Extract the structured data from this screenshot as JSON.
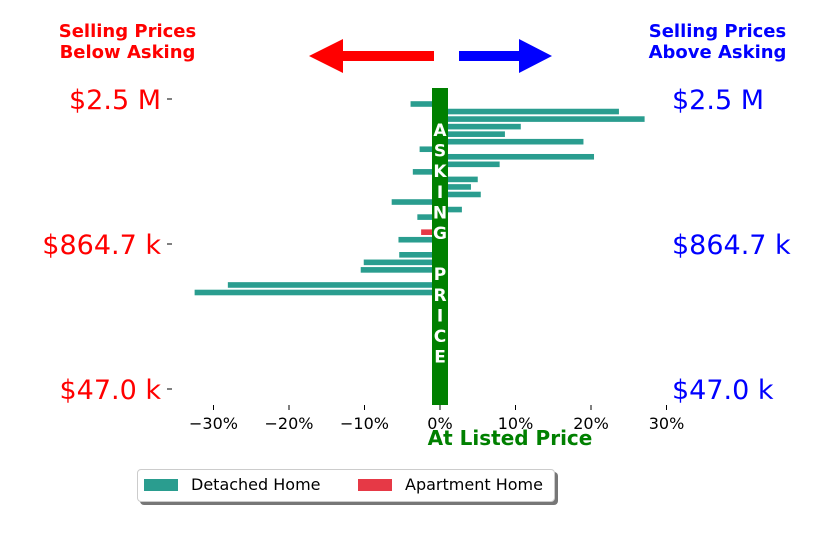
{
  "header": {
    "left_line1": "Selling Prices",
    "left_line2": "Below Asking",
    "right_line1": "Selling Prices",
    "right_line2": "Above Asking"
  },
  "colors": {
    "below": "#ff0000",
    "above": "#0000ff",
    "asking": "#008000",
    "detached": "#2a9d8f",
    "apartment": "#e63946"
  },
  "arrows": {
    "left": "left-arrow-icon",
    "right": "right-arrow-icon"
  },
  "center_bar": {
    "letters": [
      "A",
      "S",
      "K",
      "I",
      "N",
      "G",
      "",
      "P",
      "R",
      "I",
      "C",
      "E"
    ]
  },
  "legend": {
    "items": [
      {
        "label": "Detached Home",
        "color": "#2a9d8f"
      },
      {
        "label": "Apartment Home",
        "color": "#e63946"
      }
    ]
  },
  "chart_data": {
    "type": "bar",
    "orientation": "horizontal",
    "xlabel": "At Listed Price",
    "xlim": [
      -35,
      30
    ],
    "xticks": [
      -30,
      -20,
      -10,
      0,
      10,
      20,
      30
    ],
    "xtick_labels": [
      "−30%",
      "−20%",
      "−10%",
      "0%",
      "10%",
      "20%",
      "30%"
    ],
    "y_tick_labels_left": [
      "$2.5 M",
      "$864.7 k",
      "$47.0 k"
    ],
    "y_tick_labels_right": [
      "$2.5 M",
      "$864.7 k",
      "$47.0 k"
    ],
    "grid": false,
    "legend_position": "bottom-center",
    "series": [
      {
        "name": "Detached Home",
        "bars": [
          {
            "rank": 1,
            "value": -3.9
          },
          {
            "rank": 2,
            "value": 23.7
          },
          {
            "rank": 3,
            "value": 27.1
          },
          {
            "rank": 4,
            "value": 10.7
          },
          {
            "rank": 5,
            "value": 8.6
          },
          {
            "rank": 6,
            "value": 19.0
          },
          {
            "rank": 7,
            "value": -2.7
          },
          {
            "rank": 8,
            "value": 20.4
          },
          {
            "rank": 9,
            "value": 7.9
          },
          {
            "rank": 10,
            "value": -3.6
          },
          {
            "rank": 11,
            "value": 5.0
          },
          {
            "rank": 12,
            "value": 4.1
          },
          {
            "rank": 13,
            "value": 5.4
          },
          {
            "rank": 14,
            "value": -6.4
          },
          {
            "rank": 15,
            "value": 2.9
          },
          {
            "rank": 16,
            "value": -3.0
          },
          {
            "rank": 17,
            "value": 0.6
          },
          {
            "rank": 18,
            "value": 0.8
          },
          {
            "rank": 19,
            "value": -5.5
          },
          {
            "rank": 20,
            "value": 0.9
          },
          {
            "rank": 21,
            "value": -5.4
          },
          {
            "rank": 22,
            "value": -10.1
          },
          {
            "rank": 23,
            "value": -10.5
          },
          {
            "rank": 24,
            "value": 0.9
          },
          {
            "rank": 25,
            "value": -28.1
          },
          {
            "rank": 26,
            "value": -32.5
          }
        ]
      },
      {
        "name": "Apartment Home",
        "bars": [
          {
            "rank": 18,
            "value": -2.5
          }
        ]
      }
    ]
  }
}
